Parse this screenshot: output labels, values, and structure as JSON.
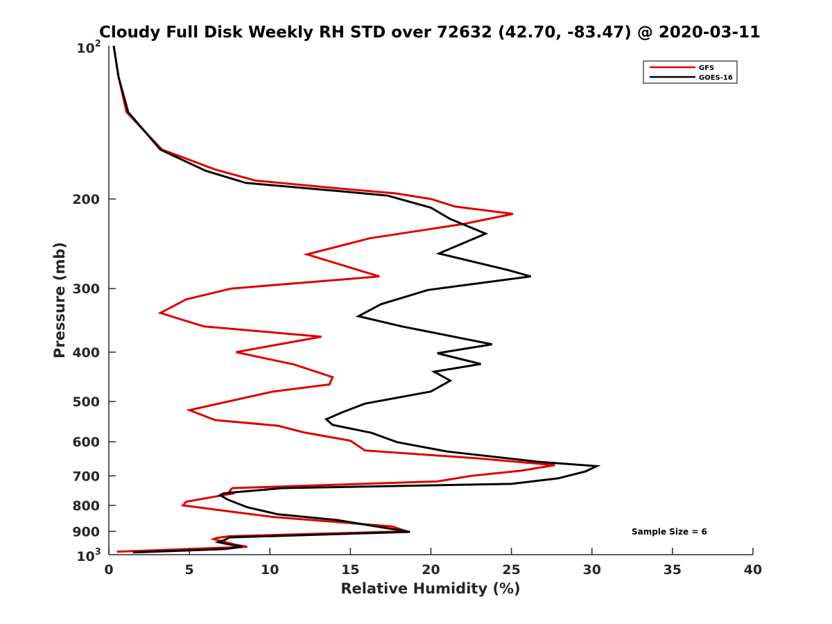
{
  "chart_data": {
    "type": "line",
    "title": "Cloudy Full Disk Weekly RH STD over 72632 (42.70, -83.47) @ 2020-03-11",
    "xlabel": "Relative Humidity (%)",
    "ylabel": "Pressure (mb)",
    "xlim": [
      0,
      40
    ],
    "ylim": [
      100,
      1000
    ],
    "y_scale": "log",
    "y_reversed": true,
    "x_ticks": [
      0,
      5,
      10,
      15,
      20,
      25,
      30,
      35,
      40
    ],
    "y_ticks": [
      200,
      300,
      400,
      500,
      600,
      700,
      800,
      900
    ],
    "y_tick_labels": [
      "200",
      "300",
      "400",
      "500",
      "600",
      "700",
      "800",
      "900"
    ],
    "y_end_labels": {
      "top_base": "10",
      "top_exp": "2",
      "bottom_base": "10",
      "bottom_exp": "3"
    },
    "grid": false,
    "legend_position": "top-right",
    "annotation": "Sample Size = 6",
    "series": [
      {
        "name": "GFS",
        "color": "#dd0000",
        "points": [
          [
            0.3,
            100
          ],
          [
            0.6,
            115
          ],
          [
            1.1,
            135
          ],
          [
            3.3,
            160
          ],
          [
            6.6,
            175
          ],
          [
            9.1,
            184
          ],
          [
            14.5,
            191
          ],
          [
            17.8,
            195
          ],
          [
            20.0,
            200
          ],
          [
            21.5,
            207
          ],
          [
            25.1,
            214
          ],
          [
            22.0,
            224
          ],
          [
            16.2,
            239
          ],
          [
            12.3,
            257
          ],
          [
            16.8,
            284
          ],
          [
            7.6,
            300
          ],
          [
            4.8,
            315
          ],
          [
            3.2,
            335
          ],
          [
            5.9,
            356
          ],
          [
            13.2,
            373
          ],
          [
            7.9,
            400
          ],
          [
            11.5,
            423
          ],
          [
            13.9,
            448
          ],
          [
            13.7,
            463
          ],
          [
            10.2,
            478
          ],
          [
            5.0,
            520
          ],
          [
            6.6,
            544
          ],
          [
            10.5,
            558
          ],
          [
            12.1,
            575
          ],
          [
            15.0,
            597
          ],
          [
            15.9,
            624
          ],
          [
            23.0,
            647
          ],
          [
            27.7,
            667
          ],
          [
            25.6,
            684
          ],
          [
            22.5,
            700
          ],
          [
            20.4,
            718
          ],
          [
            19.8,
            719
          ],
          [
            7.7,
            740
          ],
          [
            7.6,
            743
          ],
          [
            7.5,
            750
          ],
          [
            7.7,
            758
          ],
          [
            4.8,
            787
          ],
          [
            4.6,
            800
          ],
          [
            7.2,
            820
          ],
          [
            10.2,
            843
          ],
          [
            17.6,
            880
          ],
          [
            18.5,
            900
          ],
          [
            7.5,
            920
          ],
          [
            6.7,
            927
          ],
          [
            6.5,
            932
          ],
          [
            7.8,
            955
          ],
          [
            8.6,
            965
          ],
          [
            5.2,
            974
          ],
          [
            0.5,
            987
          ]
        ]
      },
      {
        "name": "GOES-16",
        "color": "#000000",
        "points": [
          [
            0.3,
            100
          ],
          [
            0.6,
            115
          ],
          [
            1.2,
            135
          ],
          [
            3.2,
            160
          ],
          [
            6.0,
            176
          ],
          [
            8.5,
            186
          ],
          [
            14.3,
            193
          ],
          [
            17.3,
            197
          ],
          [
            20.0,
            208
          ],
          [
            21.2,
            219
          ],
          [
            23.4,
            234
          ],
          [
            20.5,
            256
          ],
          [
            24.8,
            276
          ],
          [
            26.2,
            284
          ],
          [
            19.8,
            302
          ],
          [
            16.9,
            322
          ],
          [
            15.5,
            340
          ],
          [
            18.2,
            356
          ],
          [
            23.8,
            386
          ],
          [
            20.4,
            402
          ],
          [
            23.1,
            422
          ],
          [
            20.2,
            437
          ],
          [
            21.2,
            455
          ],
          [
            20.0,
            478
          ],
          [
            15.9,
            505
          ],
          [
            14.5,
            525
          ],
          [
            13.5,
            542
          ],
          [
            13.9,
            556
          ],
          [
            16.3,
            576
          ],
          [
            17.9,
            601
          ],
          [
            21.0,
            627
          ],
          [
            26.7,
            657
          ],
          [
            30.3,
            670
          ],
          [
            29.6,
            686
          ],
          [
            27.9,
            708
          ],
          [
            25.0,
            726
          ],
          [
            10.8,
            740
          ],
          [
            7.8,
            754
          ],
          [
            7.1,
            758
          ],
          [
            6.9,
            764
          ],
          [
            7.1,
            770
          ],
          [
            7.4,
            780
          ],
          [
            8.6,
            807
          ],
          [
            10.5,
            833
          ],
          [
            14.2,
            855
          ],
          [
            16.1,
            875
          ],
          [
            18.7,
            902
          ],
          [
            7.5,
            925
          ],
          [
            7.2,
            935
          ],
          [
            6.8,
            945
          ],
          [
            7.5,
            955
          ],
          [
            8.3,
            965
          ],
          [
            7.2,
            975
          ],
          [
            1.5,
            990
          ]
        ]
      }
    ]
  }
}
